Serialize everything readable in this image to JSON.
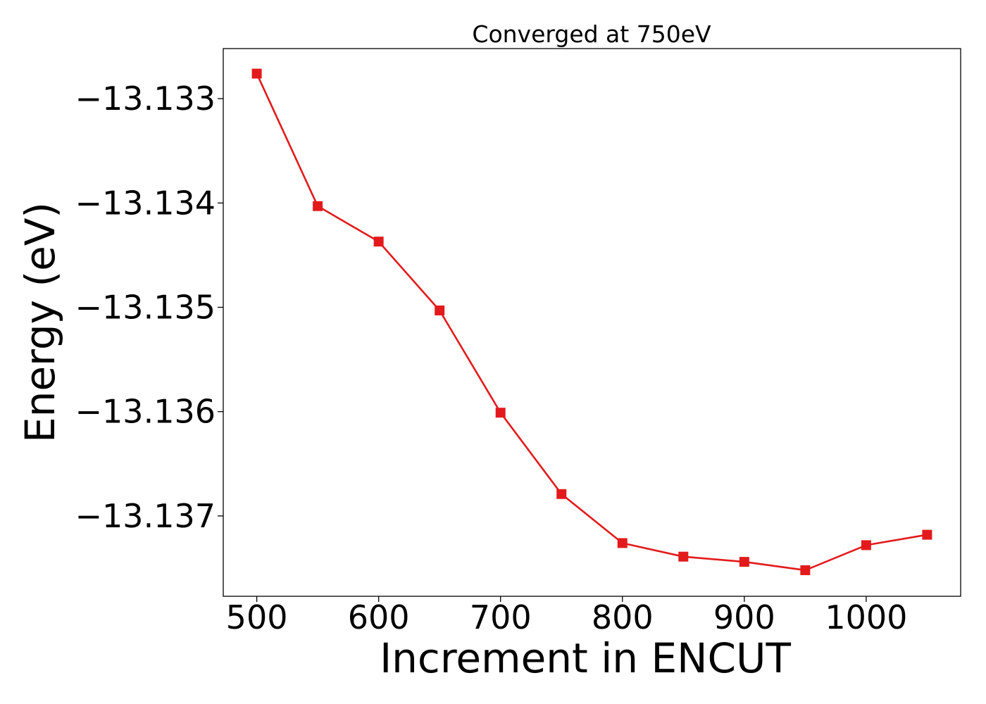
{
  "chart_data": {
    "type": "line",
    "title": "Converged at 750eV",
    "xlabel": "Increment in ENCUT",
    "ylabel": "Energy (eV)",
    "x": [
      500,
      550,
      600,
      650,
      700,
      750,
      800,
      850,
      900,
      950,
      1000,
      1050
    ],
    "x_ticks": [
      500,
      600,
      700,
      800,
      900,
      1000
    ],
    "x_tick_labels": [
      "500",
      "600",
      "700",
      "800",
      "900",
      "1000"
    ],
    "y_ticks": [
      -13.133,
      -13.134,
      -13.135,
      -13.136,
      -13.137
    ],
    "y_tick_labels": [
      "−13.133",
      "−13.134",
      "−13.135",
      "−13.136",
      "−13.137"
    ],
    "xlim": [
      472.5,
      1077.5
    ],
    "ylim": [
      -13.13777,
      -13.13252
    ],
    "grid": false,
    "series": [
      {
        "values": [
          -13.13276,
          -13.13403,
          -13.13437,
          -13.13503,
          -13.13601,
          -13.13679,
          -13.13726,
          -13.13739,
          -13.13744,
          -13.13752,
          -13.13728,
          -13.13718
        ],
        "color": "#e31a1c",
        "marker": "square"
      }
    ]
  }
}
